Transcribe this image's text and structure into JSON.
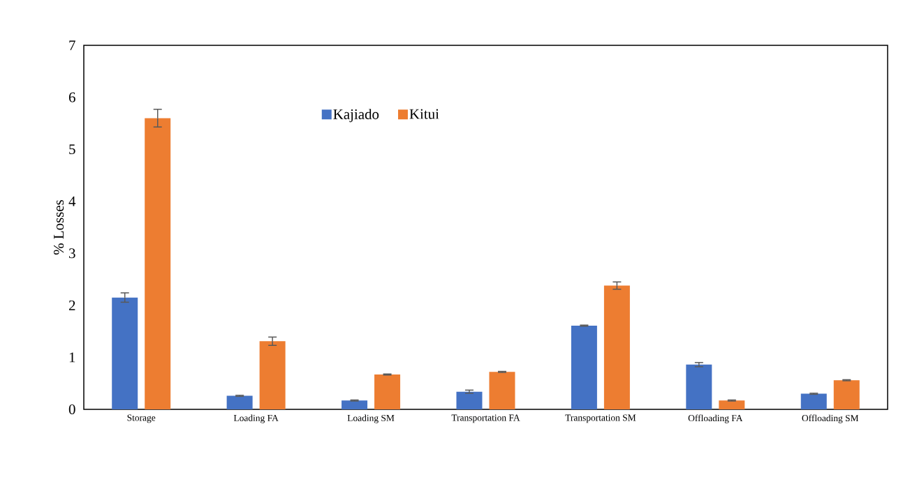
{
  "chart_data": {
    "type": "bar",
    "ylabel": "% Losses",
    "categories": [
      "Storage",
      "Loading FA",
      "Loading SM",
      "Transportation FA",
      "Transportation SM",
      "Offloading FA",
      "Offloading SM"
    ],
    "series": [
      {
        "name": "Kajiado",
        "color": "#4472c4",
        "values": [
          2.15,
          0.26,
          0.17,
          0.34,
          1.61,
          0.86,
          0.3
        ],
        "errors": [
          0.09,
          0.01,
          0.01,
          0.03,
          0.01,
          0.04,
          0.01
        ]
      },
      {
        "name": "Kitui",
        "color": "#ed7d31",
        "values": [
          5.6,
          1.31,
          0.67,
          0.72,
          2.38,
          0.17,
          0.56
        ],
        "errors": [
          0.17,
          0.08,
          0.01,
          0.01,
          0.07,
          0.01,
          0.01
        ]
      }
    ],
    "ylim": [
      0,
      7
    ],
    "yticks": [
      0,
      1,
      2,
      3,
      4,
      5,
      6,
      7
    ],
    "grid": false,
    "legend": "top"
  }
}
